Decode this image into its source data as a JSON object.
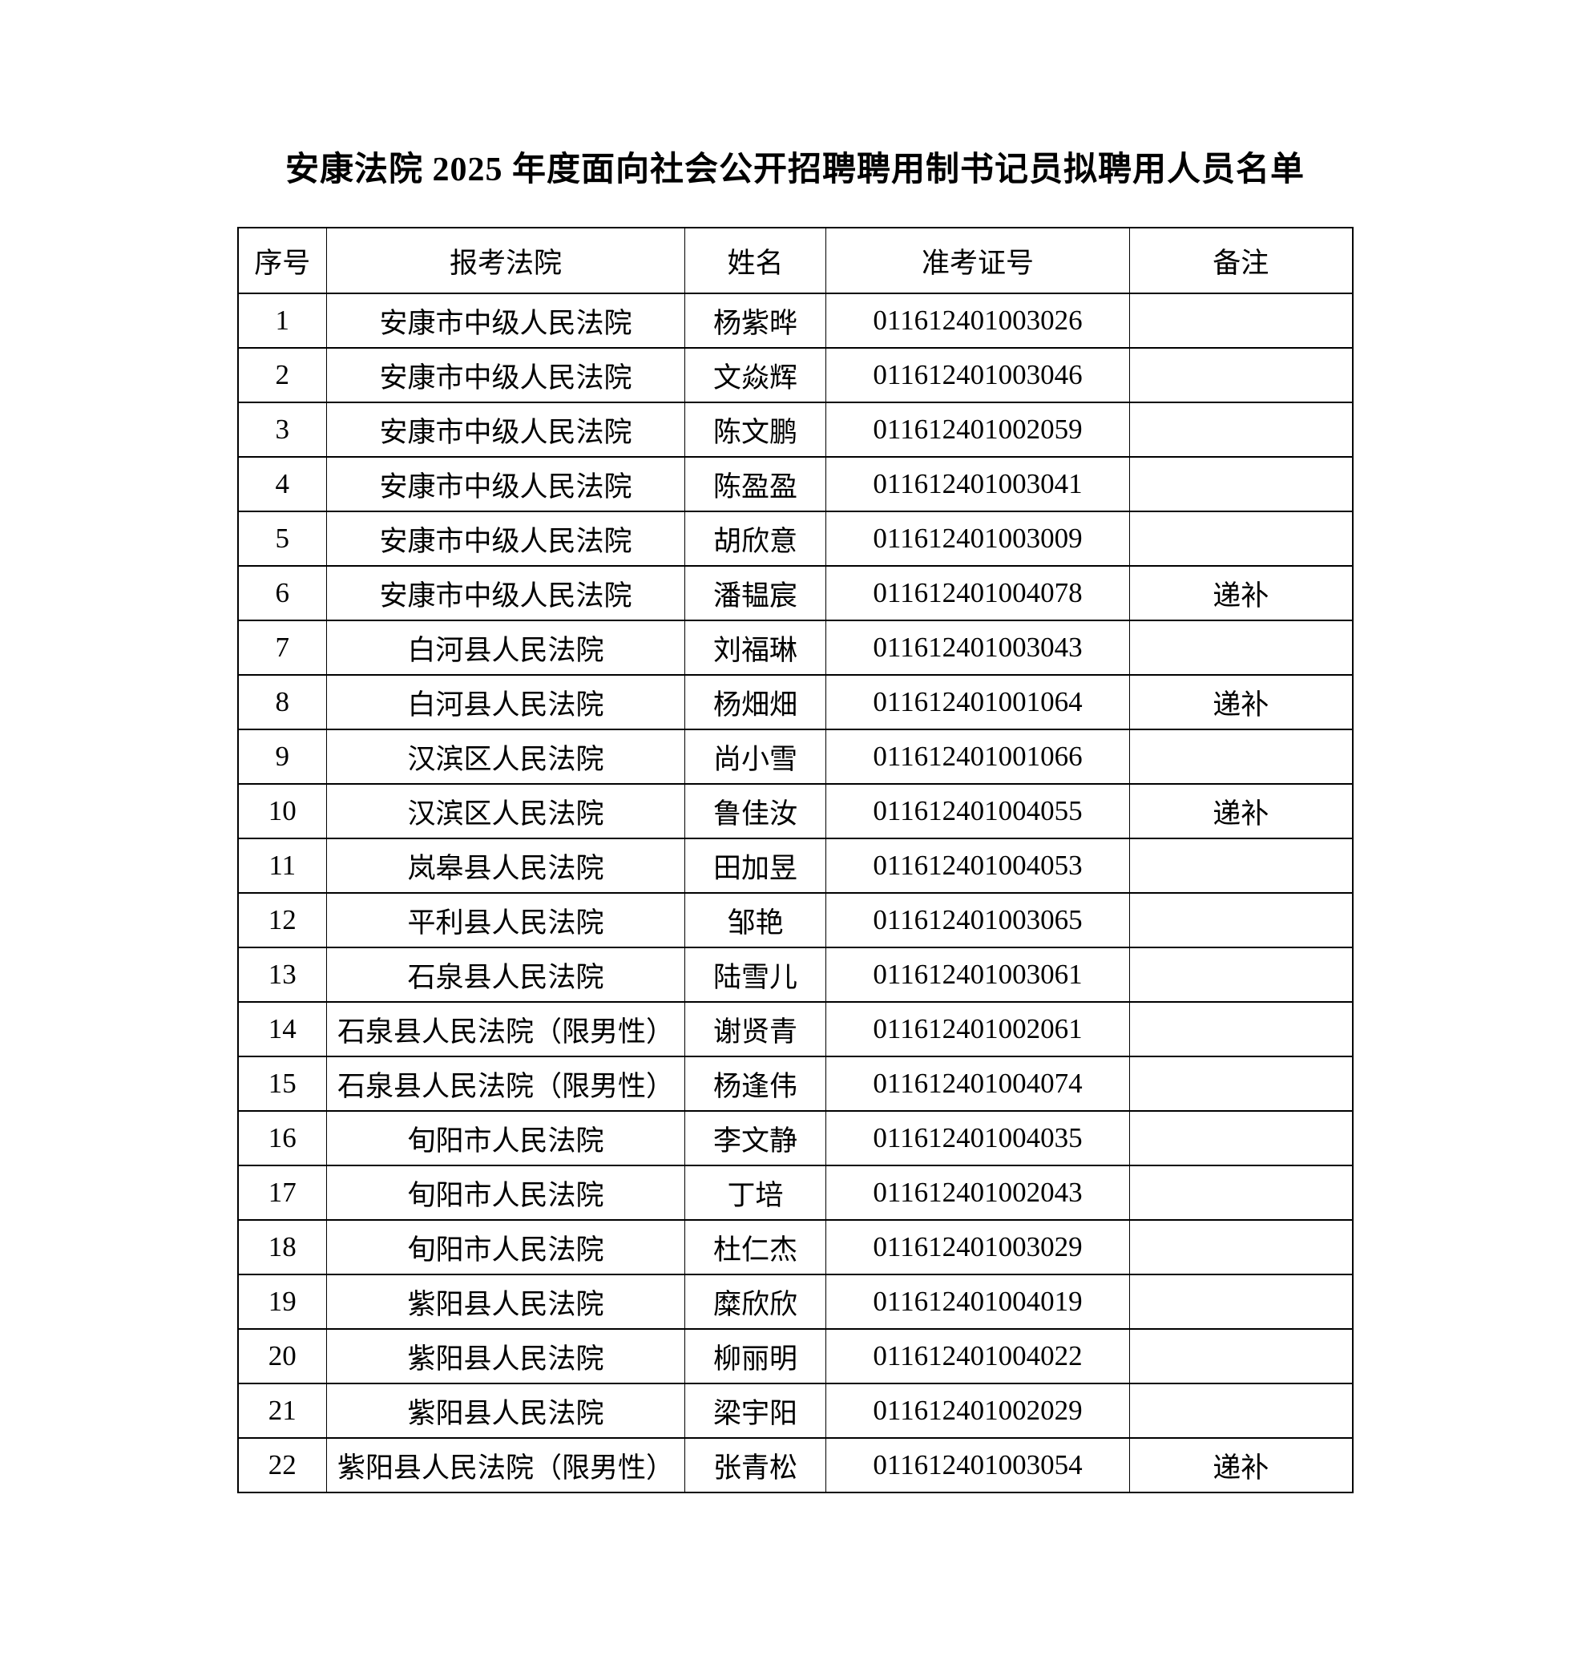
{
  "page": {
    "title": "安康法院 2025 年度面向社会公开招聘聘用制书记员拟聘用人员名单"
  },
  "table": {
    "headers": {
      "no": "序号",
      "court": "报考法院",
      "name": "姓名",
      "ticket": "准考证号",
      "remark": "备注"
    },
    "rows": [
      {
        "no": "1",
        "court": "安康市中级人民法院",
        "name": "杨紫晔",
        "ticket": "011612401003026",
        "remark": ""
      },
      {
        "no": "2",
        "court": "安康市中级人民法院",
        "name": "文焱辉",
        "ticket": "011612401003046",
        "remark": ""
      },
      {
        "no": "3",
        "court": "安康市中级人民法院",
        "name": "陈文鹏",
        "ticket": "011612401002059",
        "remark": ""
      },
      {
        "no": "4",
        "court": "安康市中级人民法院",
        "name": "陈盈盈",
        "ticket": "011612401003041",
        "remark": ""
      },
      {
        "no": "5",
        "court": "安康市中级人民法院",
        "name": "胡欣意",
        "ticket": "011612401003009",
        "remark": ""
      },
      {
        "no": "6",
        "court": "安康市中级人民法院",
        "name": "潘韫宸",
        "ticket": "011612401004078",
        "remark": "递补"
      },
      {
        "no": "7",
        "court": "白河县人民法院",
        "name": "刘福琳",
        "ticket": "011612401003043",
        "remark": ""
      },
      {
        "no": "8",
        "court": "白河县人民法院",
        "name": "杨畑畑",
        "ticket": "011612401001064",
        "remark": "递补"
      },
      {
        "no": "9",
        "court": "汉滨区人民法院",
        "name": "尚小雪",
        "ticket": "011612401001066",
        "remark": ""
      },
      {
        "no": "10",
        "court": "汉滨区人民法院",
        "name": "鲁佳汝",
        "ticket": "011612401004055",
        "remark": "递补"
      },
      {
        "no": "11",
        "court": "岚皋县人民法院",
        "name": "田加昱",
        "ticket": "011612401004053",
        "remark": ""
      },
      {
        "no": "12",
        "court": "平利县人民法院",
        "name": "邹艳",
        "ticket": "011612401003065",
        "remark": ""
      },
      {
        "no": "13",
        "court": "石泉县人民法院",
        "name": "陆雪儿",
        "ticket": "011612401003061",
        "remark": ""
      },
      {
        "no": "14",
        "court": "石泉县人民法院（限男性）",
        "name": "谢贤青",
        "ticket": "011612401002061",
        "remark": ""
      },
      {
        "no": "15",
        "court": "石泉县人民法院（限男性）",
        "name": "杨逢伟",
        "ticket": "011612401004074",
        "remark": ""
      },
      {
        "no": "16",
        "court": "旬阳市人民法院",
        "name": "李文静",
        "ticket": "011612401004035",
        "remark": ""
      },
      {
        "no": "17",
        "court": "旬阳市人民法院",
        "name": "丁培",
        "ticket": "011612401002043",
        "remark": ""
      },
      {
        "no": "18",
        "court": "旬阳市人民法院",
        "name": "杜仁杰",
        "ticket": "011612401003029",
        "remark": ""
      },
      {
        "no": "19",
        "court": "紫阳县人民法院",
        "name": "糜欣欣",
        "ticket": "011612401004019",
        "remark": ""
      },
      {
        "no": "20",
        "court": "紫阳县人民法院",
        "name": "柳丽明",
        "ticket": "011612401004022",
        "remark": ""
      },
      {
        "no": "21",
        "court": "紫阳县人民法院",
        "name": "梁宇阳",
        "ticket": "011612401002029",
        "remark": ""
      },
      {
        "no": "22",
        "court": "紫阳县人民法院（限男性）",
        "name": "张青松",
        "ticket": "011612401003054",
        "remark": "递补"
      }
    ]
  },
  "colors": {
    "text": "#000000",
    "background": "#ffffff",
    "border": "#000000"
  }
}
